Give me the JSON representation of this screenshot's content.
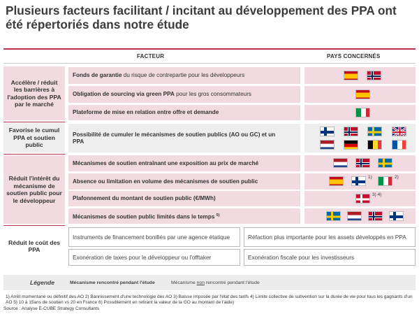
{
  "title": "Plusieurs facteurs facilitant / incitant au développement des PPA ont été répertoriés dans notre étude",
  "headers": {
    "facteur": "Facteur",
    "pays": "Pays concernés"
  },
  "categories": {
    "c1": "Accélère / réduit les barrières à l'adoption des PPA par le marché",
    "c2": "Favorise le cumul PPA et soutien public",
    "c3": "Réduit l'intérêt du mécanisme de soutien public pour le développeur",
    "c4": "Réduit le coût des PPA"
  },
  "factors": [
    {
      "bold": "Fonds de garantie",
      "rest": " du risque de contrepartie pour les développeurs"
    },
    {
      "bold": "Obligation de sourcing via green PPA",
      "rest": " pour les gros consommateurs"
    },
    {
      "bold": "Plateforme de mise en relation entre offre et demande",
      "rest": ""
    },
    {
      "bold": "Possibilité de cumuler le mécanismes de soutien publics (AO ou GC) et un PPA",
      "rest": ""
    },
    {
      "bold": "Mécanismes de soutien entraînant une exposition au prix de marché",
      "rest": ""
    },
    {
      "bold": "Absence ou limitation en volume des mécanismes de soutien public",
      "rest": ""
    },
    {
      "bold": "Plafonnement du montant de soutien public (€/MWh)",
      "rest": ""
    },
    {
      "bold": "Mécanismes de soutien public limités dans le temps",
      "rest": "",
      "sup": "5)"
    }
  ],
  "cost_boxes": [
    "Instruments de financement bonifiés par une agence étatique",
    "Réfaction plus importante pour les assets développés en PPA",
    "Exonération de taxes pour le développeur ou l'offtaker",
    "Exonération fiscale pour les investisseurs"
  ],
  "footnote_marks": {
    "m1": "1)",
    "m2": "2)",
    "m34": "3) 4)"
  },
  "legend": {
    "title": "Légende",
    "met": "Mécanisme rencontré pendant l'étude",
    "not_met_pre": "Mécanisme ",
    "not_met_u": "non",
    "not_met_post": " rencontré pendant l'étude"
  },
  "notes": "1) Arrêt momentané ou définitif des AO 2) Bannissement d'une technologie des AO 3) Baisse imposée par l'état des tarifs 4) Limite collective de subvention sur la durée de vie pour tous les gagnants d'un AO 5) 10 à 15ans de soutien vs 20 en France 6) Possiblement en retirant la valeur de la GO au montant de l'aide)",
  "source": "Source : Analyse E-CUBE Strategy Consultants",
  "flag_icons": [
    "spain-flag-icon",
    "norway-flag-icon",
    "finland-flag-icon",
    "sweden-flag-icon",
    "uk-flag-icon",
    "netherlands-flag-icon",
    "germany-flag-icon",
    "belgium-flag-icon",
    "france-flag-icon",
    "italy-flag-icon",
    "denmark-flag-icon"
  ]
}
